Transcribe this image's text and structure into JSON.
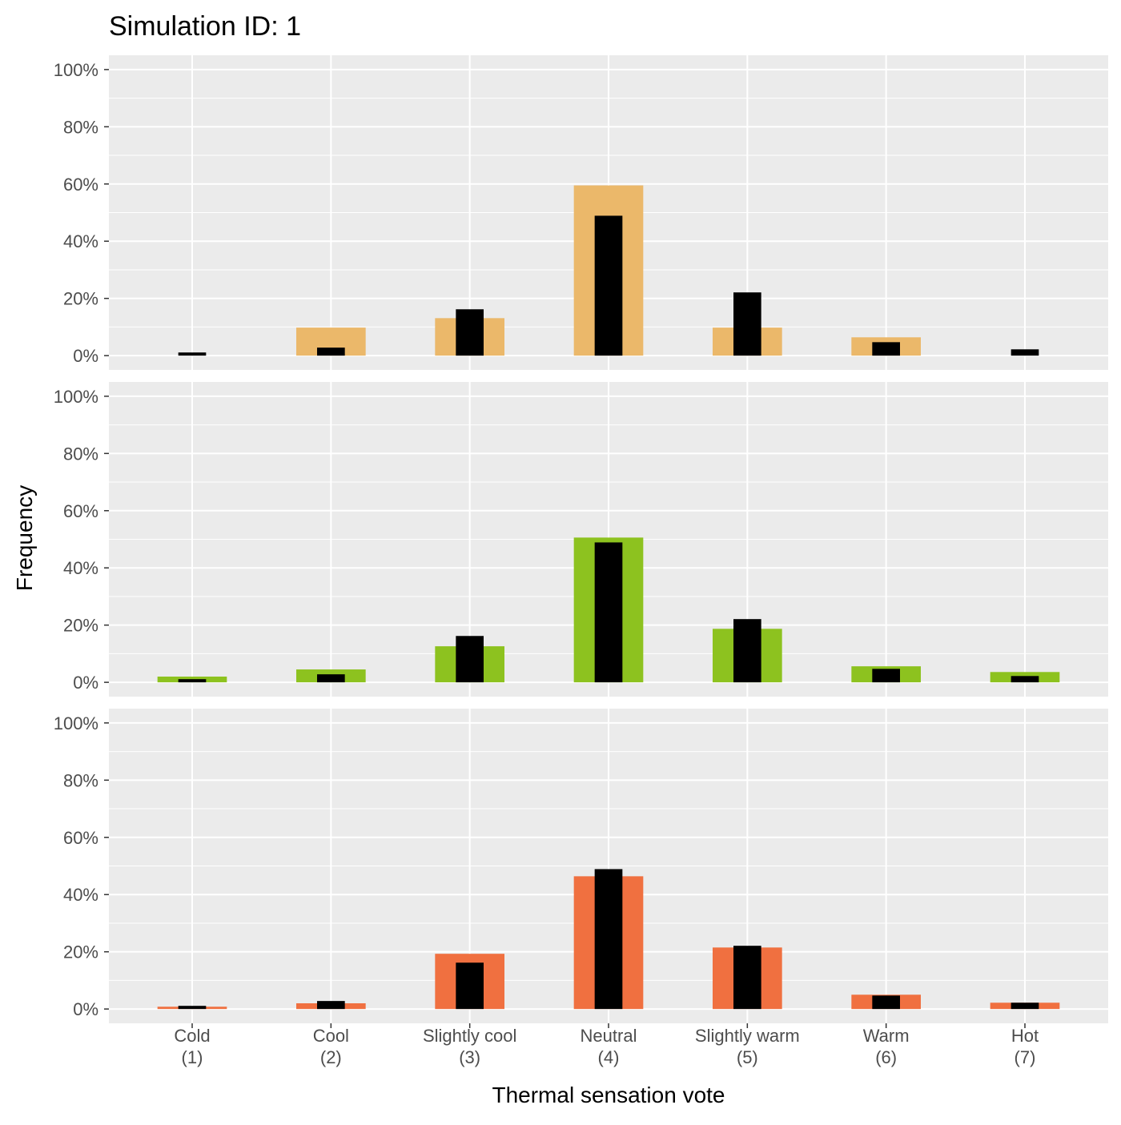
{
  "chart_data": {
    "type": "bar",
    "title": "Simulation ID: 1",
    "xlabel": "Thermal sensation vote",
    "ylabel": "Frequency",
    "ylim": [
      0,
      100
    ],
    "yticks": [
      "0%",
      "20%",
      "40%",
      "60%",
      "80%",
      "100%"
    ],
    "ytick_values": [
      0,
      20,
      40,
      60,
      80,
      100
    ],
    "categories": [
      {
        "name": "Cold",
        "code": "(1)"
      },
      {
        "name": "Cool",
        "code": "(2)"
      },
      {
        "name": "Slightly cool",
        "code": "(3)"
      },
      {
        "name": "Neutral",
        "code": "(4)"
      },
      {
        "name": "Slightly warm",
        "code": "(5)"
      },
      {
        "name": "Warm",
        "code": "(6)"
      },
      {
        "name": "Hot",
        "code": "(7)"
      }
    ],
    "reference_color": "#000000",
    "reference_values": [
      1.1,
      2.8,
      16.2,
      48.9,
      22.1,
      4.7,
      2.2
    ],
    "panels": [
      {
        "color": "#EBB86A",
        "values": [
          0,
          9.8,
          13.1,
          59.5,
          9.8,
          6.4,
          0
        ]
      },
      {
        "color": "#8DC21F",
        "values": [
          2.0,
          4.5,
          12.6,
          50.6,
          18.7,
          5.6,
          3.6
        ]
      },
      {
        "color": "#F07040",
        "values": [
          0.8,
          2.0,
          19.3,
          46.4,
          21.5,
          5.0,
          2.2
        ]
      }
    ],
    "grid": true
  }
}
